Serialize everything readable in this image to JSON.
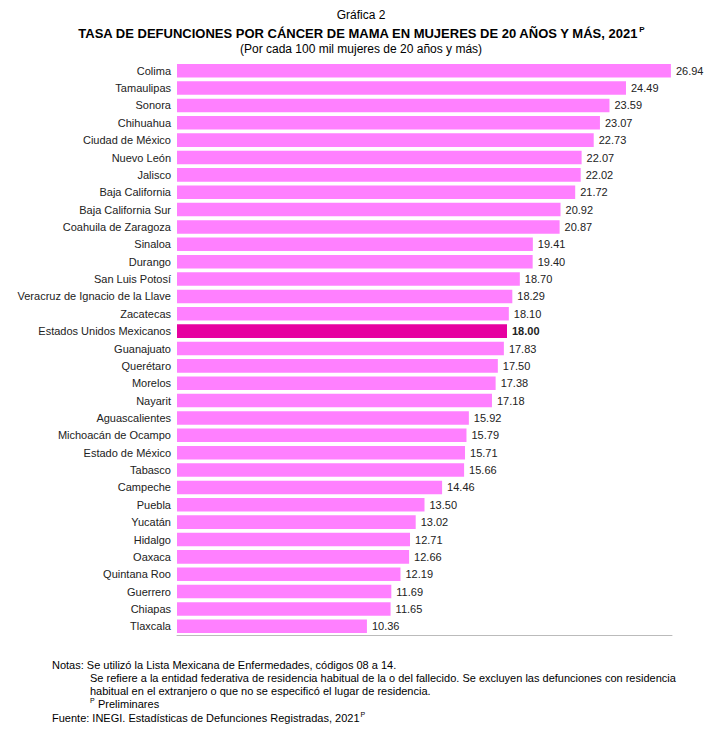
{
  "chart_data": {
    "type": "bar",
    "orientation": "horizontal",
    "label": "Gráfica 2",
    "title": "TASA DE DEFUNCIONES POR CÁNCER DE MAMA EN MUJERES DE 20 AÑOS Y MÁS, 2021",
    "title_mark": "P",
    "subtitle": "(Por cada 100 mil mujeres de 20 años y más)",
    "categories": [
      "Colima",
      "Tamaulipas",
      "Sonora",
      "Chihuahua",
      "Ciudad de México",
      "Nuevo León",
      "Jalisco",
      "Baja California",
      "Baja California Sur",
      "Coahuila de Zaragoza",
      "Sinaloa",
      "Durango",
      "San Luis Potosí",
      "Veracruz de Ignacio de la Llave",
      "Zacatecas",
      "Estados Unidos Mexicanos",
      "Guanajuato",
      "Querétaro",
      "Morelos",
      "Nayarit",
      "Aguascalientes",
      "Michoacán de Ocampo",
      "Estado de México",
      "Tabasco",
      "Campeche",
      "Puebla",
      "Yucatán",
      "Hidalgo",
      "Oaxaca",
      "Quintana Roo",
      "Guerrero",
      "Chiapas",
      "Tlaxcala"
    ],
    "values": [
      26.94,
      24.49,
      23.59,
      23.07,
      22.73,
      22.07,
      22.02,
      21.72,
      20.92,
      20.87,
      19.41,
      19.4,
      18.7,
      18.29,
      18.1,
      18.0,
      17.83,
      17.5,
      17.38,
      17.18,
      15.92,
      15.79,
      15.71,
      15.66,
      14.46,
      13.5,
      13.02,
      12.71,
      12.66,
      12.19,
      11.69,
      11.65,
      10.36
    ],
    "value_labels": [
      "26.94",
      "24.49",
      "23.59",
      "23.07",
      "22.73",
      "22.07",
      "22.02",
      "21.72",
      "20.92",
      "20.87",
      "19.41",
      "19.40",
      "18.70",
      "18.29",
      "18.10",
      "18.00",
      "17.83",
      "17.50",
      "17.38",
      "17.18",
      "15.92",
      "15.79",
      "15.71",
      "15.66",
      "14.46",
      "13.50",
      "13.02",
      "12.71",
      "12.66",
      "12.19",
      "11.69",
      "11.65",
      "10.36"
    ],
    "colors": [
      "#ff80ff",
      "#ff80ff",
      "#ff80ff",
      "#ff80ff",
      "#ff80ff",
      "#ff80ff",
      "#ff80ff",
      "#ff80ff",
      "#ff80ff",
      "#ff80ff",
      "#ff80ff",
      "#ff80ff",
      "#ff80ff",
      "#ff80ff",
      "#ff80ff",
      "#e600a0",
      "#ff80ff",
      "#ff80ff",
      "#ff80ff",
      "#ff80ff",
      "#ff80ff",
      "#ff80ff",
      "#ff80ff",
      "#ff80ff",
      "#ff80ff",
      "#ff80ff",
      "#ff80ff",
      "#ff80ff",
      "#ff80ff",
      "#ff80ff",
      "#ff80ff",
      "#ff80ff",
      "#ff80ff"
    ],
    "xlim": [
      0,
      27
    ],
    "grid": false,
    "data_labels": true,
    "tick_labels": "y",
    "notes": [
      "Notas: Se utilizó la Lista Mexicana de Enfermedades, códigos 08 a 14.",
      "Se refiere a la entidad federativa de residencia habitual de la o del fallecido. Se excluyen las defunciones con residencia habitual en el extranjero o que no se especificó el lugar de residencia."
    ],
    "preliminary_mark": "P",
    "preliminary_note": "Preliminares",
    "source": "Fuente: INEGI. Estadísticas de Defunciones Registradas, 2021",
    "source_mark": "P"
  }
}
